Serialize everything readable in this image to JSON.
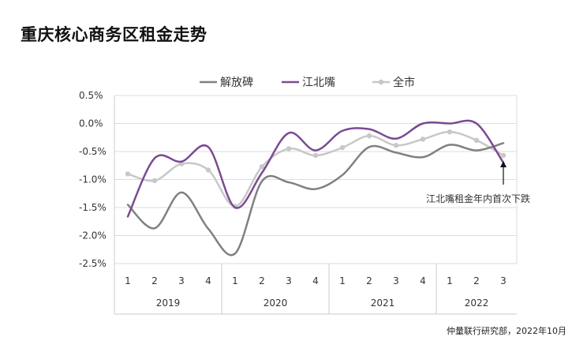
{
  "title": "重庆核心商务区租金走势",
  "source": "仲量联行研究部，2022年10月",
  "chart_data": {
    "type": "line",
    "title": "重庆核心商务区租金走势",
    "xlabel": "",
    "ylabel": "",
    "ylim": [
      -2.5,
      0.5
    ],
    "y_ticks": [
      "0.5%",
      "0.0%",
      "-0.5%",
      "-1.0%",
      "-1.5%",
      "-2.0%",
      "-2.5%"
    ],
    "y_tick_values": [
      0.5,
      0.0,
      -0.5,
      -1.0,
      -1.5,
      -2.0,
      -2.5
    ],
    "grid": true,
    "legend_position": "top",
    "categories": [
      "1",
      "2",
      "3",
      "4",
      "1",
      "2",
      "3",
      "4",
      "1",
      "2",
      "3",
      "4",
      "1",
      "2",
      "3"
    ],
    "year_groups": [
      {
        "label": "2019",
        "span": 4
      },
      {
        "label": "2020",
        "span": 4
      },
      {
        "label": "2021",
        "span": 4
      },
      {
        "label": "2022",
        "span": 3
      }
    ],
    "series": [
      {
        "name": "解放碑",
        "color": "#808080",
        "markers": false,
        "values": [
          -1.45,
          -1.87,
          -1.23,
          -1.88,
          -2.32,
          -1.03,
          -1.05,
          -1.17,
          -0.92,
          -0.42,
          -0.52,
          -0.6,
          -0.38,
          -0.48,
          -0.35
        ]
      },
      {
        "name": "江北嘴",
        "color": "#7b4a92",
        "markers": false,
        "values": [
          -1.66,
          -0.62,
          -0.68,
          -0.42,
          -1.5,
          -0.88,
          -0.17,
          -0.48,
          -0.13,
          -0.1,
          -0.27,
          0.0,
          0.0,
          0.0,
          -0.7
        ]
      },
      {
        "name": "全市",
        "color": "#c8c8c8",
        "markers": true,
        "values": [
          -0.9,
          -1.02,
          -0.72,
          -0.83,
          -1.48,
          -0.77,
          -0.45,
          -0.57,
          -0.43,
          -0.22,
          -0.39,
          -0.28,
          -0.15,
          -0.3,
          -0.57
        ]
      }
    ],
    "annotation": {
      "text": "江北嘴租金年内首次下跌",
      "series": "江北嘴",
      "point_index": 14
    }
  }
}
